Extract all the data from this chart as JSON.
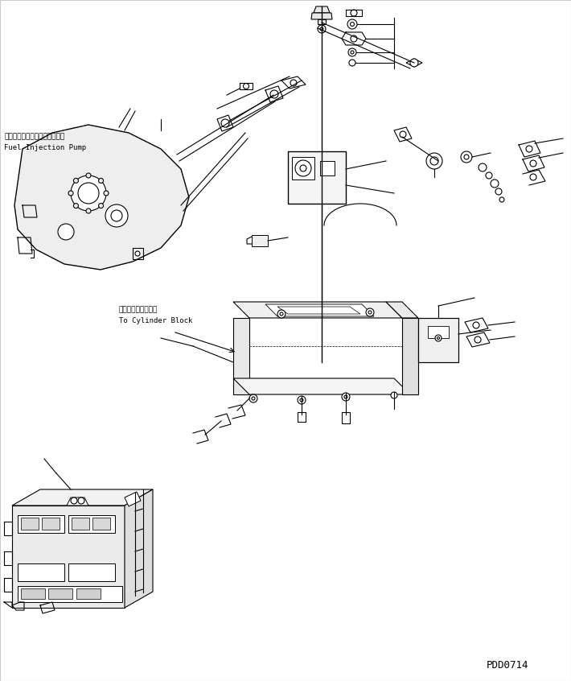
{
  "background_color": "#ffffff",
  "line_color": "#000000",
  "diagram_code": "PDD0714",
  "label_fuel_pump_jp": "フェルインジェクションポンプ",
  "label_fuel_pump_en": "Fuel Injection Pump",
  "label_cylinder_jp": "シリンタブロックへ",
  "label_cylinder_en": "To Cylinder Block",
  "fig_width": 7.1,
  "fig_height": 8.46,
  "dpi": 100
}
